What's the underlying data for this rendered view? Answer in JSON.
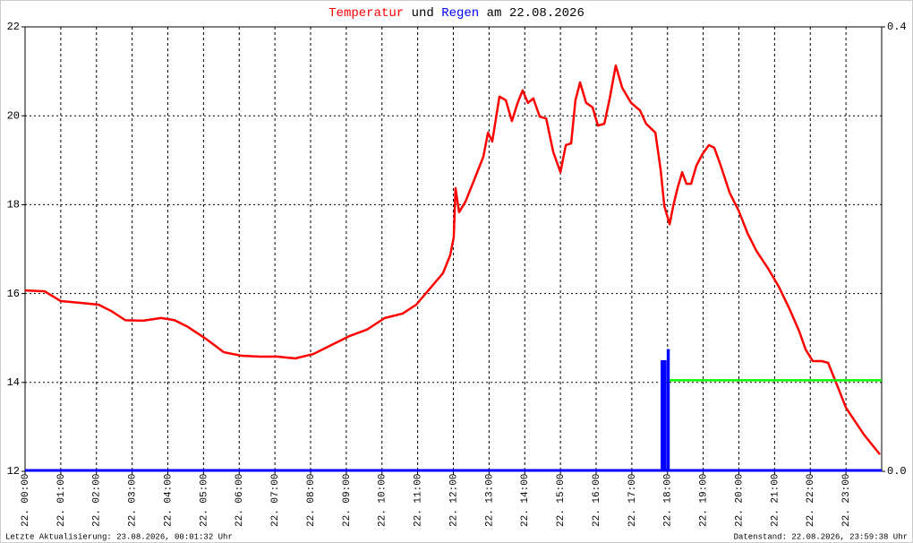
{
  "chart_data": {
    "type": "line",
    "title_mid": "und",
    "title_end": "am 22.08.2026",
    "xlim": [
      0,
      24
    ],
    "xticks": [
      {
        "value": 0,
        "label": "22. 00:00"
      },
      {
        "value": 1,
        "label": "22. 01:00"
      },
      {
        "value": 2,
        "label": "22. 02:00"
      },
      {
        "value": 3,
        "label": "22. 03:00"
      },
      {
        "value": 4,
        "label": "22. 04:00"
      },
      {
        "value": 5,
        "label": "22. 05:00"
      },
      {
        "value": 6,
        "label": "22. 06:00"
      },
      {
        "value": 7,
        "label": "22. 07:00"
      },
      {
        "value": 8,
        "label": "22. 08:00"
      },
      {
        "value": 9,
        "label": "22. 09:00"
      },
      {
        "value": 10,
        "label": "22. 10:00"
      },
      {
        "value": 11,
        "label": "22. 11:00"
      },
      {
        "value": 12,
        "label": "22. 12:00"
      },
      {
        "value": 13,
        "label": "22. 13:00"
      },
      {
        "value": 14,
        "label": "22. 14:00"
      },
      {
        "value": 15,
        "label": "22. 15:00"
      },
      {
        "value": 16,
        "label": "22. 16:00"
      },
      {
        "value": 17,
        "label": "22. 17:00"
      },
      {
        "value": 18,
        "label": "22. 18:00"
      },
      {
        "value": 19,
        "label": "22. 19:00"
      },
      {
        "value": 20,
        "label": "22. 20:00"
      },
      {
        "value": 21,
        "label": "22. 21:00"
      },
      {
        "value": 22,
        "label": "22. 22:00"
      },
      {
        "value": 23,
        "label": "22. 23:00"
      }
    ],
    "ylim": [
      12,
      22
    ],
    "yticks": [
      12,
      14,
      16,
      18,
      20,
      22
    ],
    "y2lim": [
      0,
      0.4
    ],
    "y2ticks": [
      {
        "value": 0,
        "label": "0.0"
      },
      {
        "value": 0.4,
        "label": "0.4"
      }
    ],
    "grid": true,
    "series": [
      {
        "name": "Temperatur",
        "color": "#ff0000",
        "type": "line",
        "x": [
          0,
          0.55,
          1.0,
          1.55,
          2.06,
          2.43,
          2.81,
          3.31,
          3.81,
          4.19,
          4.56,
          5.07,
          5.57,
          6.07,
          6.57,
          7.07,
          7.57,
          8.08,
          8.58,
          9.08,
          9.58,
          10.08,
          10.58,
          10.96,
          11.34,
          11.71,
          11.91,
          12.01,
          12.06,
          12.16,
          12.34,
          12.59,
          12.84,
          12.97,
          13.09,
          13.29,
          13.47,
          13.64,
          13.8,
          13.94,
          14.09,
          14.24,
          14.42,
          14.6,
          14.8,
          15.0,
          15.15,
          15.3,
          15.42,
          15.55,
          15.72,
          15.9,
          16.05,
          16.23,
          16.38,
          16.55,
          16.73,
          16.98,
          17.23,
          17.4,
          17.66,
          17.81,
          17.91,
          18.06,
          18.16,
          18.28,
          18.41,
          18.53,
          18.66,
          18.81,
          18.98,
          19.16,
          19.31,
          19.49,
          19.74,
          19.99,
          20.24,
          20.49,
          20.82,
          21.12,
          21.42,
          21.69,
          21.87,
          22.07,
          22.32,
          22.5,
          22.75,
          23.0,
          23.25,
          23.5,
          23.75,
          23.95
        ],
        "values": [
          16.07,
          16.05,
          15.83,
          15.79,
          15.75,
          15.6,
          15.4,
          15.39,
          15.45,
          15.4,
          15.25,
          14.98,
          14.68,
          14.6,
          14.58,
          14.58,
          14.54,
          14.64,
          14.84,
          15.04,
          15.19,
          15.45,
          15.55,
          15.75,
          16.11,
          16.46,
          16.86,
          17.26,
          18.37,
          17.83,
          18.07,
          18.57,
          19.08,
          19.62,
          19.42,
          20.43,
          20.35,
          19.88,
          20.29,
          20.57,
          20.29,
          20.39,
          19.98,
          19.94,
          19.18,
          18.73,
          19.34,
          19.38,
          20.35,
          20.75,
          20.29,
          20.19,
          19.78,
          19.82,
          20.39,
          21.13,
          20.63,
          20.29,
          20.12,
          19.82,
          19.62,
          18.77,
          17.97,
          17.56,
          17.97,
          18.37,
          18.73,
          18.47,
          18.47,
          18.88,
          19.14,
          19.34,
          19.28,
          18.88,
          18.27,
          17.87,
          17.36,
          16.96,
          16.56,
          16.15,
          15.65,
          15.15,
          14.74,
          14.48,
          14.48,
          14.44,
          13.94,
          13.43,
          13.13,
          12.83,
          12.58,
          12.38
        ]
      },
      {
        "name": "Regen",
        "color": "#0000ff",
        "type": "bar",
        "axis": "y2",
        "x": [
          17.85,
          17.93,
          18.02
        ],
        "values": [
          0.1,
          0.1,
          0.11
        ]
      },
      {
        "color": "#00ff00",
        "type": "line",
        "axis": "y2",
        "x": [
          18.06,
          24
        ],
        "values": [
          0.082,
          0.082
        ]
      }
    ]
  },
  "footer": {
    "left": "Letzte Aktualisierung: 23.08.2026, 00:01:32 Uhr",
    "right": "Datenstand: 22.08.2026, 23:59:38 Uhr"
  }
}
